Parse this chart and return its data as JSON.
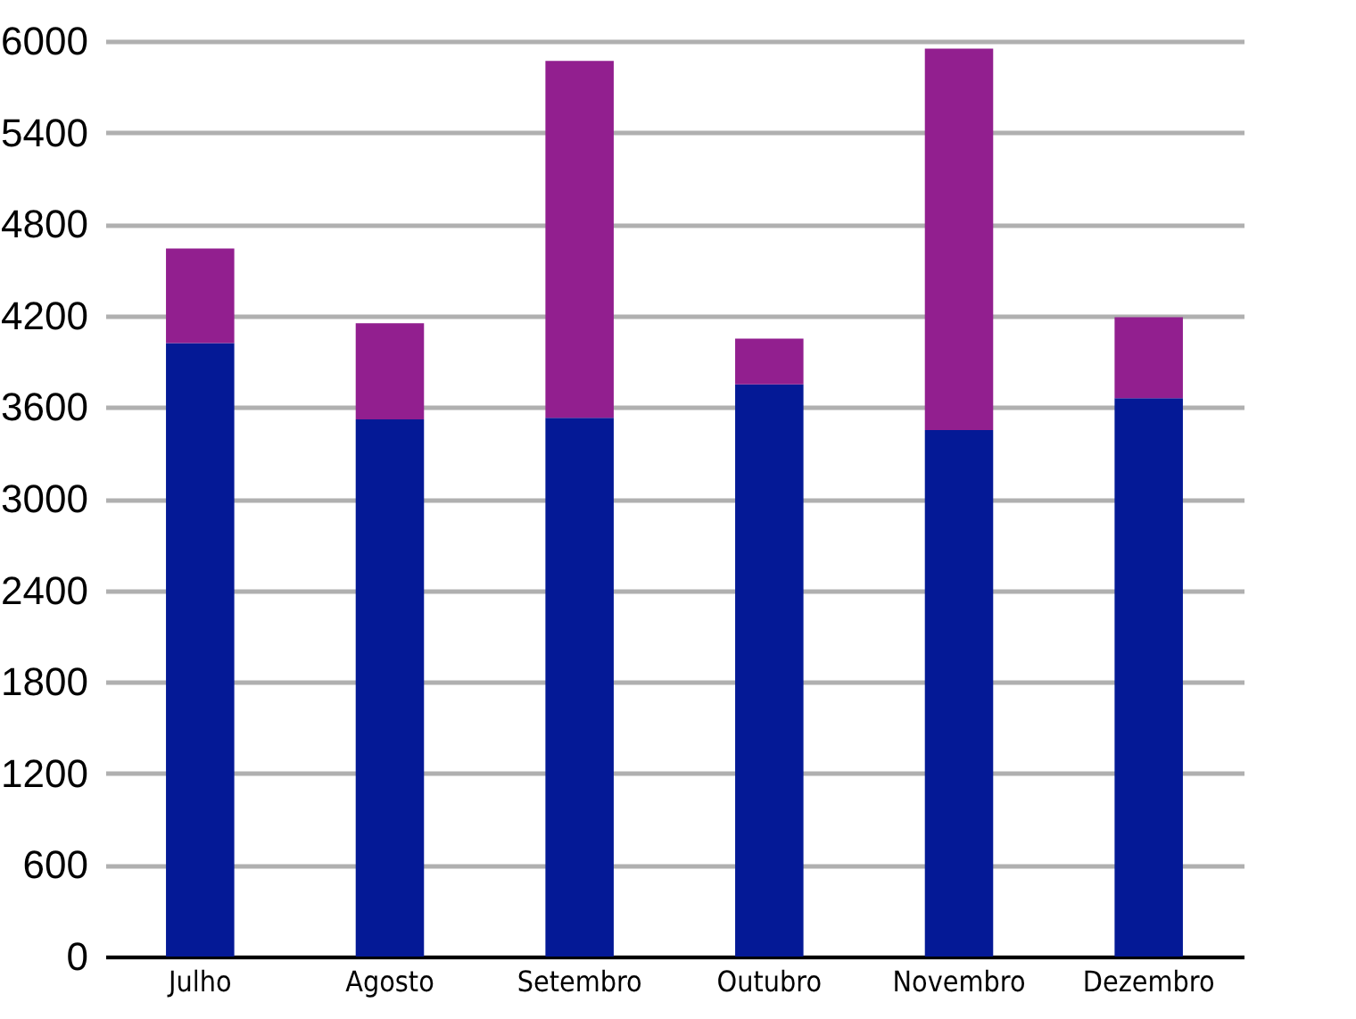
{
  "chart_data": {
    "type": "bar",
    "stacked": true,
    "categories": [
      "Julho",
      "Agosto",
      "Setembro",
      "Outubro",
      "Novembro",
      "Dezembro"
    ],
    "series": [
      {
        "color": "#041996",
        "values": [
          4020,
          3520,
          3530,
          3750,
          3450,
          3660
        ]
      },
      {
        "color": "#921f8f",
        "values": [
          620,
          630,
          2340,
          300,
          2500,
          530
        ]
      }
    ],
    "ylim": [
      0,
      6000
    ],
    "yticks": [
      0,
      600,
      1200,
      1800,
      2400,
      3000,
      3600,
      4200,
      4800,
      5400,
      6000
    ],
    "grid": "y",
    "legend": false
  }
}
